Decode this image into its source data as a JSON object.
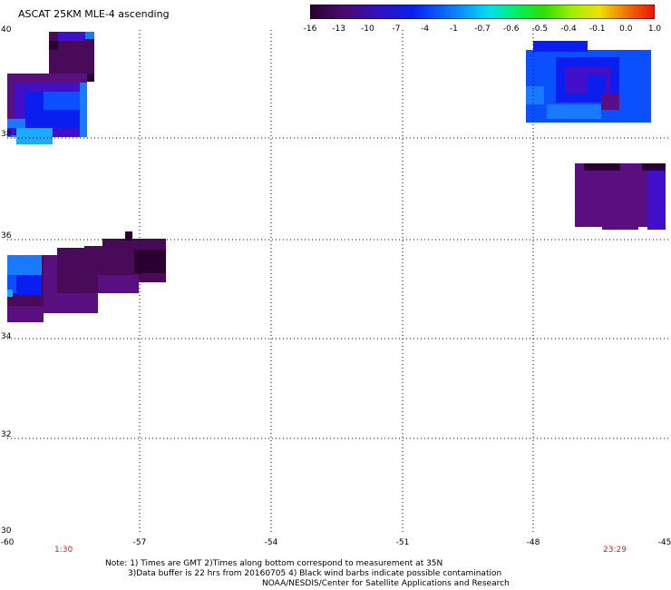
{
  "title": "ASCAT 25KM MLE-4 ascending",
  "colorbar": {
    "labels": [
      "-16",
      "-13",
      "-10",
      "-7",
      "-4",
      "-1",
      "-0.7",
      "-0.6",
      "-0.5",
      "-0.4",
      "-0.1",
      "0.0",
      "1.0"
    ]
  },
  "axes": {
    "x_ticks": [
      "-60",
      "-57",
      "-54",
      "-51",
      "-48",
      "-45"
    ],
    "y_ticks": [
      "40",
      "38",
      "36",
      "34",
      "32",
      "30"
    ]
  },
  "times": {
    "left": "1:30",
    "right": "23:29"
  },
  "notes": {
    "line1": "Note: 1) Times are GMT 2)Times along bottom correspond to measurement at 35N",
    "line2": "3)Data buffer is 22 hrs from 20160705 4) Black wind barbs indicate possible contamination",
    "line3": "NOAA/NESDIS/Center for Satellite Applications and Research"
  },
  "colors": {
    "dark_purple": "#4a0a5a",
    "purple": "#5a0f80",
    "indigo": "#4010c8",
    "blue": "#0a1ef0",
    "bright_blue": "#0a50ff",
    "azure": "#1a7aff",
    "sky": "#1aaaff",
    "near_black": "#2a0030"
  }
}
